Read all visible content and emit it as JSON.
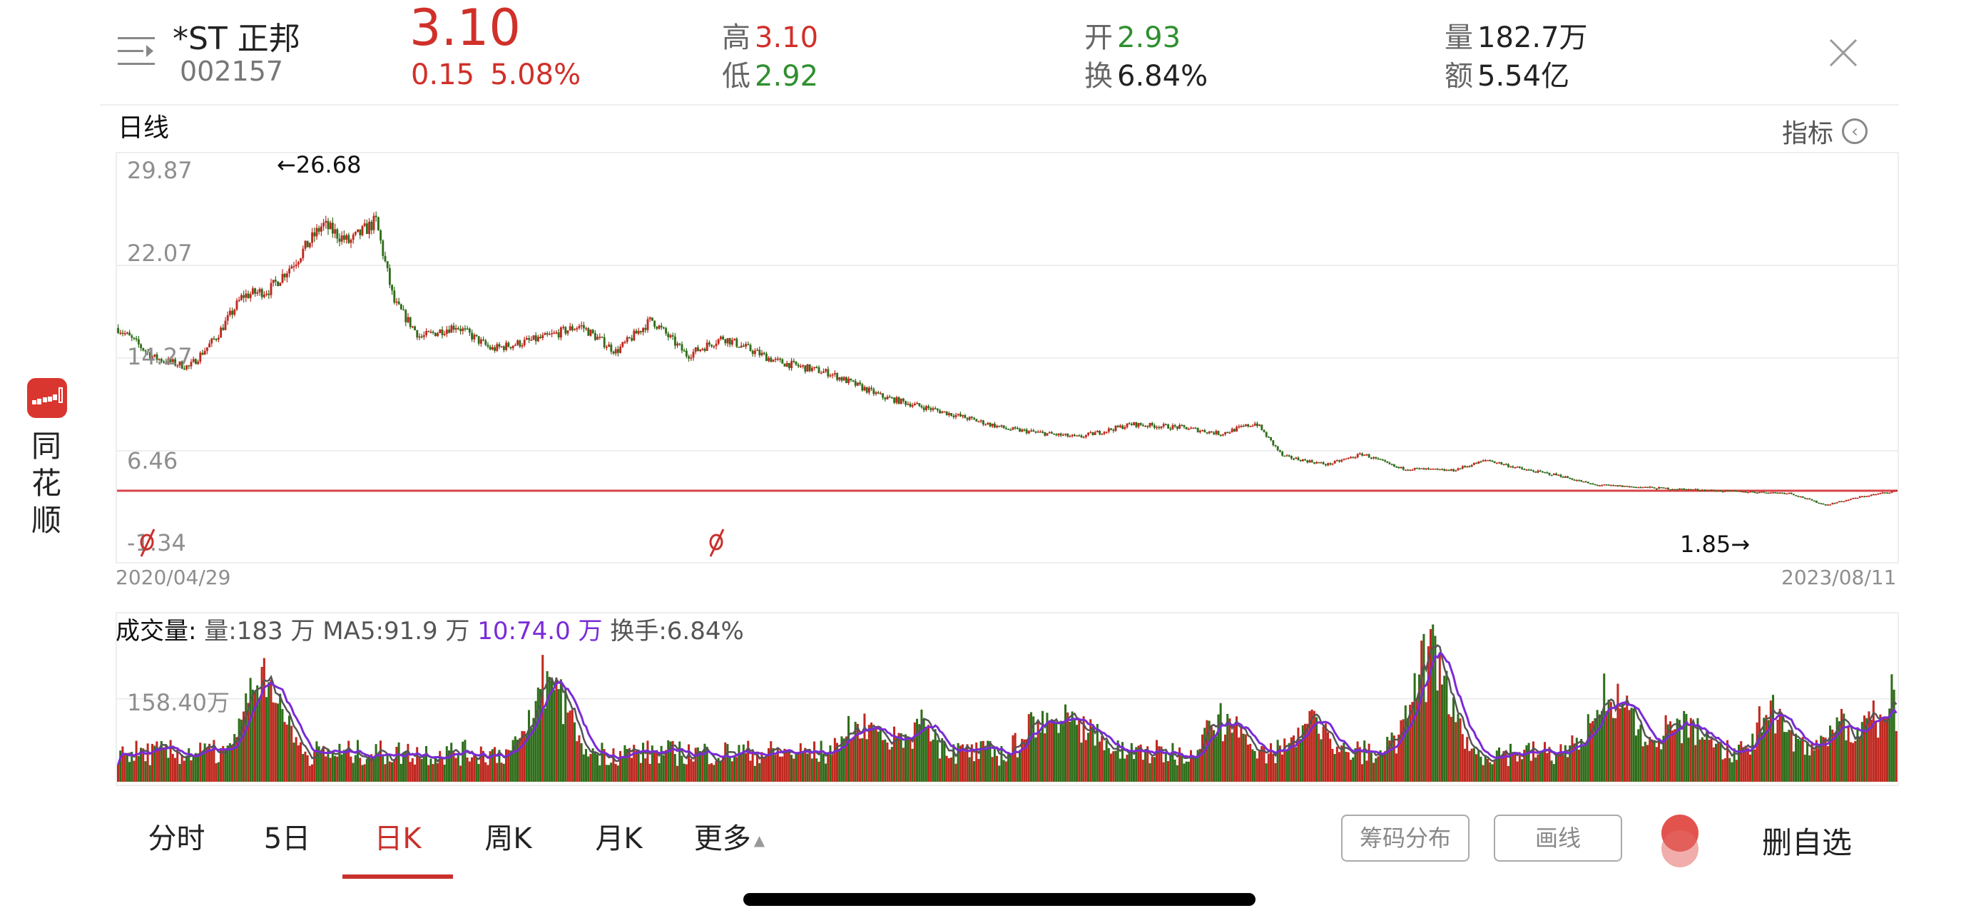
{
  "header": {
    "stock_name": "*ST 正邦",
    "stock_code": "002157",
    "price": "3.10",
    "change": "0.15",
    "change_pct": "5.08%",
    "high_label": "高",
    "high": "3.10",
    "low_label": "低",
    "low": "2.92",
    "open_label": "开",
    "open": "2.93",
    "turnover_label": "换",
    "turnover": "6.84%",
    "volume_label": "量",
    "volume": "182.7万",
    "amount_label": "额",
    "amount": "5.54亿",
    "icons": {
      "menu": "menu-arrow-icon",
      "close": "close-icon"
    }
  },
  "colors": {
    "up": "#d0302a",
    "down": "#2f8f2f",
    "candle_up": "#c0281f",
    "candle_down": "#2f6e1b",
    "ma10": "#7a2bd6",
    "ma5": "#555555",
    "accent": "#c9312c"
  },
  "sidebar": {
    "app_name": [
      "同",
      "花",
      "顺"
    ],
    "logo_icon": "candlestick-logo-icon"
  },
  "price_chart": {
    "section_title": "日线",
    "indicator_label": "指标",
    "y_labels": [
      "29.87",
      "22.07",
      "14.27",
      "6.46",
      "-1.34"
    ],
    "max_marker": "←26.68",
    "min_marker": "1.85→",
    "start_date": "2020/04/29",
    "end_date": "2023/08/11"
  },
  "volume_chart": {
    "title": "成交量:",
    "vol": "量:183 万",
    "ma5": "MA5:91.9 万",
    "ma10": "10:74.0 万",
    "turnover": "换手:6.84%",
    "y_label": "158.40万"
  },
  "tabs": [
    {
      "label": "分时",
      "active": false
    },
    {
      "label": "5日",
      "active": false
    },
    {
      "label": "日K",
      "active": true
    },
    {
      "label": "周K",
      "active": false
    },
    {
      "label": "月K",
      "active": false
    },
    {
      "label": "更多",
      "active": false
    }
  ],
  "actions": {
    "chip_dist": "筹码分布",
    "draw_line": "画线",
    "remove_watchlist": "删自选"
  },
  "chart_data": {
    "type": "candlestick",
    "title": "日线",
    "x_range": [
      "2020/04/29",
      "2023/08/11"
    ],
    "y_ticks": [
      29.87,
      22.07,
      14.27,
      6.46,
      -1.34
    ],
    "ylim": [
      -1.34,
      29.87
    ],
    "annotations": {
      "max": 26.68,
      "min": 1.85
    },
    "close_path": [
      {
        "t": 0.0,
        "v": 16.8
      },
      {
        "t": 0.02,
        "v": 14.3
      },
      {
        "t": 0.04,
        "v": 13.5
      },
      {
        "t": 0.055,
        "v": 16.0
      },
      {
        "t": 0.07,
        "v": 19.5
      },
      {
        "t": 0.085,
        "v": 20.0
      },
      {
        "t": 0.1,
        "v": 22.5
      },
      {
        "t": 0.115,
        "v": 25.5
      },
      {
        "t": 0.13,
        "v": 24.0
      },
      {
        "t": 0.145,
        "v": 25.8
      },
      {
        "t": 0.155,
        "v": 19.0
      },
      {
        "t": 0.17,
        "v": 16.0
      },
      {
        "t": 0.19,
        "v": 17.0
      },
      {
        "t": 0.21,
        "v": 15.0
      },
      {
        "t": 0.24,
        "v": 16.0
      },
      {
        "t": 0.26,
        "v": 17.0
      },
      {
        "t": 0.28,
        "v": 14.8
      },
      {
        "t": 0.3,
        "v": 17.5
      },
      {
        "t": 0.32,
        "v": 14.5
      },
      {
        "t": 0.34,
        "v": 16.0
      },
      {
        "t": 0.37,
        "v": 14.0
      },
      {
        "t": 0.4,
        "v": 13.0
      },
      {
        "t": 0.43,
        "v": 11.0
      },
      {
        "t": 0.47,
        "v": 9.5
      },
      {
        "t": 0.5,
        "v": 8.3
      },
      {
        "t": 0.54,
        "v": 7.6
      },
      {
        "t": 0.57,
        "v": 8.7
      },
      {
        "t": 0.6,
        "v": 8.4
      },
      {
        "t": 0.62,
        "v": 7.9
      },
      {
        "t": 0.64,
        "v": 8.8
      },
      {
        "t": 0.655,
        "v": 6.0
      },
      {
        "t": 0.68,
        "v": 5.3
      },
      {
        "t": 0.7,
        "v": 6.2
      },
      {
        "t": 0.72,
        "v": 5.0
      },
      {
        "t": 0.75,
        "v": 4.8
      },
      {
        "t": 0.77,
        "v": 5.7
      },
      {
        "t": 0.79,
        "v": 4.9
      },
      {
        "t": 0.81,
        "v": 4.4
      },
      {
        "t": 0.83,
        "v": 3.6
      },
      {
        "t": 0.87,
        "v": 3.3
      },
      {
        "t": 0.9,
        "v": 3.1
      },
      {
        "t": 0.94,
        "v": 2.9
      },
      {
        "t": 0.96,
        "v": 1.9
      },
      {
        "t": 0.98,
        "v": 2.6
      },
      {
        "t": 1.0,
        "v": 3.1
      }
    ],
    "reference_line": 3.1,
    "volume": {
      "y_tick": "158.40万",
      "latest": "183万",
      "ma5": "91.9万",
      "ma10": "74.0万",
      "spikes": [
        {
          "t": 0.08,
          "v": 160
        },
        {
          "t": 0.085,
          "v": 190
        },
        {
          "t": 0.24,
          "v": 140
        },
        {
          "t": 0.245,
          "v": 175
        },
        {
          "t": 0.42,
          "v": 130
        },
        {
          "t": 0.45,
          "v": 110
        },
        {
          "t": 0.52,
          "v": 135
        },
        {
          "t": 0.54,
          "v": 120
        },
        {
          "t": 0.62,
          "v": 150
        },
        {
          "t": 0.67,
          "v": 135
        },
        {
          "t": 0.73,
          "v": 160
        },
        {
          "t": 0.74,
          "v": 300
        },
        {
          "t": 0.835,
          "v": 135
        },
        {
          "t": 0.845,
          "v": 140
        },
        {
          "t": 0.88,
          "v": 135
        },
        {
          "t": 0.93,
          "v": 155
        },
        {
          "t": 0.97,
          "v": 130
        },
        {
          "t": 0.998,
          "v": 205
        }
      ]
    }
  }
}
